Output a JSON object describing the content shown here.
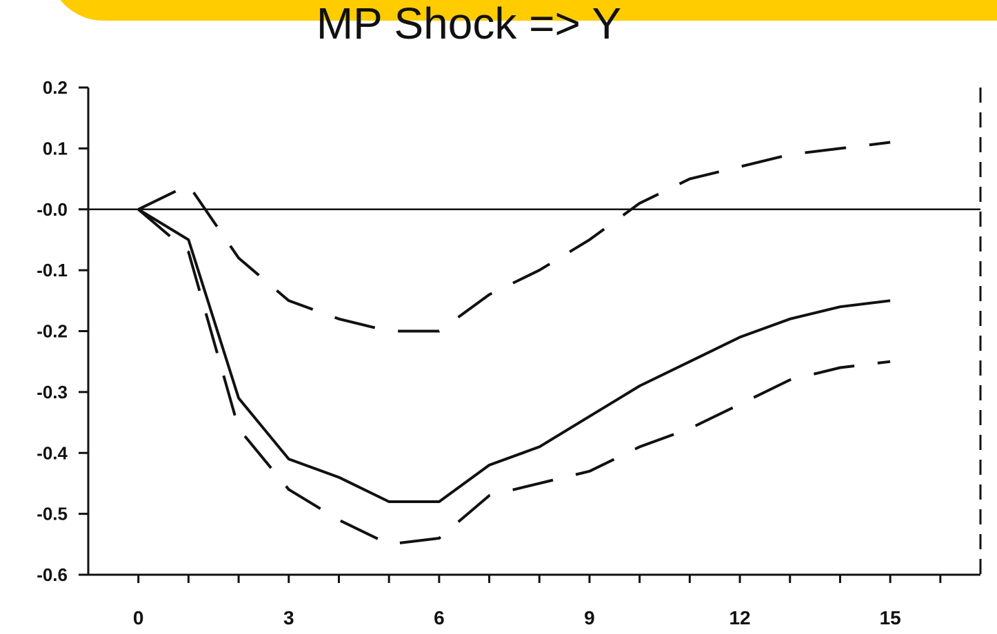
{
  "colors": {
    "banner": "#ffcc00",
    "ink": "#111111",
    "background": "#ffffff"
  },
  "chart_data": {
    "type": "line",
    "title": "MP Shock => Y",
    "xlabel": "",
    "ylabel": "",
    "xlim": [
      -1,
      16.8
    ],
    "ylim": [
      -0.6,
      0.2
    ],
    "x_ticks": [
      0,
      3,
      6,
      9,
      12,
      15
    ],
    "x_tick_labels": [
      "0",
      "3",
      "6",
      "9",
      "12",
      "15"
    ],
    "y_ticks": [
      0.2,
      0.1,
      0.0,
      -0.1,
      -0.2,
      -0.3,
      -0.4,
      -0.5,
      -0.6
    ],
    "y_tick_labels": [
      "0.2",
      "0.1",
      "-0.0",
      "-0.1",
      "-0.2",
      "-0.3",
      "-0.4",
      "-0.5",
      "-0.6"
    ],
    "zero_line": true,
    "grid": false,
    "x": [
      0,
      1,
      2,
      3,
      4,
      5,
      6,
      7,
      8,
      9,
      10,
      11,
      12,
      13,
      14,
      15
    ],
    "series": [
      {
        "style": "solid",
        "values": [
          0.0,
          -0.05,
          -0.31,
          -0.41,
          -0.44,
          -0.48,
          -0.48,
          -0.42,
          -0.39,
          -0.34,
          -0.29,
          -0.25,
          -0.21,
          -0.18,
          -0.16,
          -0.15
        ]
      },
      {
        "style": "dashed",
        "values": [
          0.0,
          0.04,
          -0.08,
          -0.15,
          -0.18,
          -0.2,
          -0.2,
          -0.14,
          -0.1,
          -0.05,
          0.01,
          0.05,
          0.07,
          0.09,
          0.1,
          0.11
        ]
      },
      {
        "style": "dashed",
        "values": [
          0.0,
          -0.07,
          -0.36,
          -0.46,
          -0.51,
          -0.55,
          -0.54,
          -0.47,
          -0.45,
          -0.43,
          -0.39,
          -0.36,
          -0.32,
          -0.28,
          -0.26,
          -0.25
        ]
      }
    ]
  }
}
